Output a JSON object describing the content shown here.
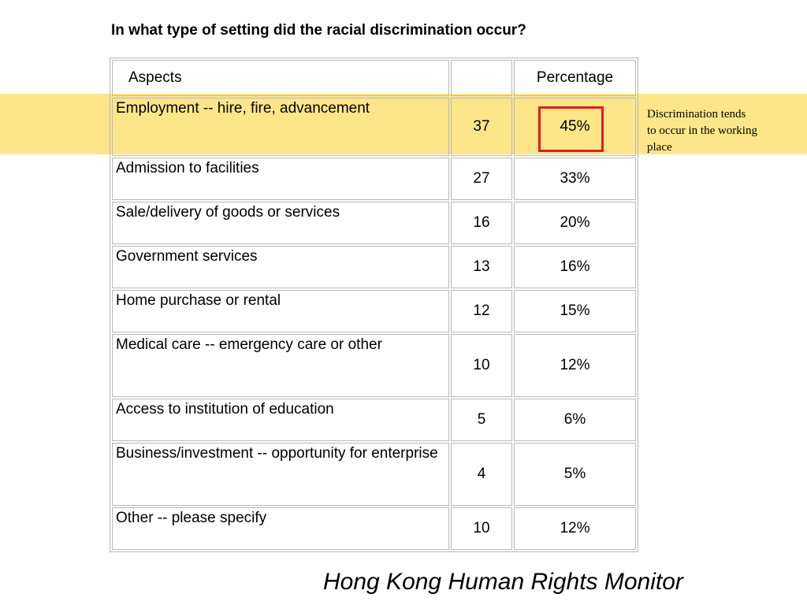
{
  "slide": {
    "title": "In what type of setting did the racial discrimination occur?",
    "annotation": "Discrimination tends to occur in the working place",
    "footer": "Hong Kong Human Rights Monitor",
    "highlight_color": "#fde68a",
    "box_color": "#e11d1d"
  },
  "table": {
    "headers": [
      "Aspects",
      "",
      "Percentage"
    ],
    "rows": [
      {
        "aspect": "Employment -- hire, fire, advancement",
        "count": "37",
        "percentage": "45%"
      },
      {
        "aspect": "Admission to facilities",
        "count": "27",
        "percentage": "33%"
      },
      {
        "aspect": "Sale/delivery of goods or services",
        "count": "16",
        "percentage": "20%"
      },
      {
        "aspect": "Government services",
        "count": "13",
        "percentage": "16%"
      },
      {
        "aspect": "Home purchase or rental",
        "count": "12",
        "percentage": "15%"
      },
      {
        "aspect": "Medical care -- emergency care or other",
        "count": "10",
        "percentage": "12%"
      },
      {
        "aspect": "Access to institution of education",
        "count": "5",
        "percentage": "6%"
      },
      {
        "aspect": "Business/investment -- opportunity for enterprise",
        "count": "4",
        "percentage": "5%"
      },
      {
        "aspect": "Other -- please specify",
        "count": "10",
        "percentage": "12%"
      }
    ]
  }
}
